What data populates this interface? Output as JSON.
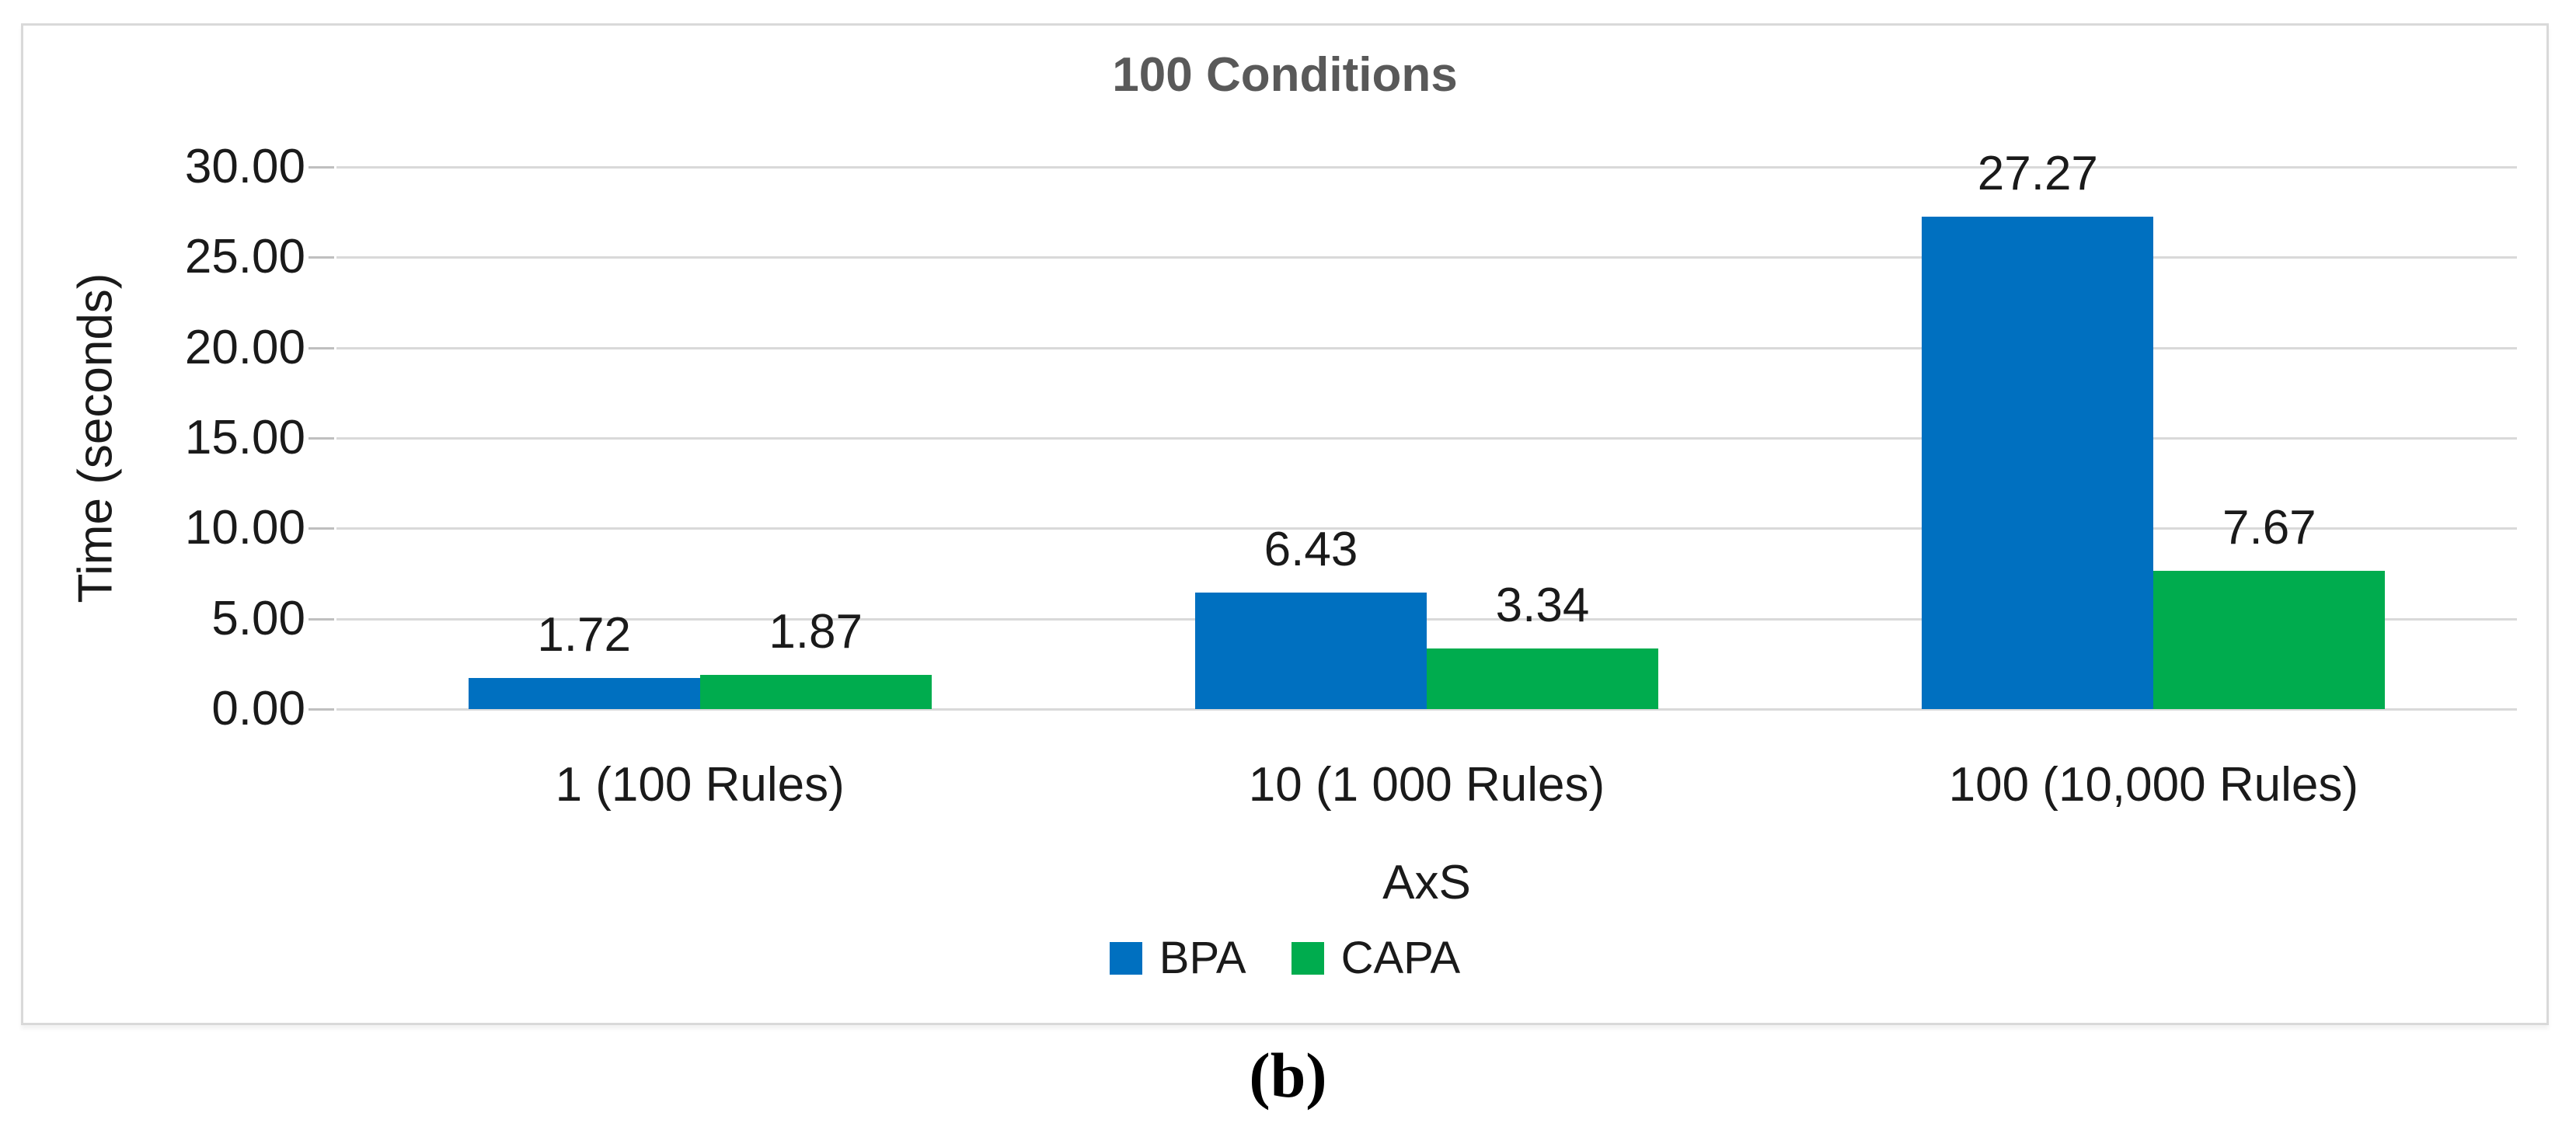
{
  "figure": {
    "caption": "(b)"
  },
  "chart_data": {
    "type": "bar",
    "title": "100 Conditions",
    "xlabel": "AxS",
    "ylabel": "Time (seconds)",
    "categories": [
      "1 (100 Rules)",
      "10 (1 000 Rules)",
      "100 (10,000 Rules)"
    ],
    "series": [
      {
        "name": "BPA",
        "color": "#0070C0",
        "values": [
          1.72,
          6.43,
          27.27
        ],
        "labels": [
          "1.72",
          "6.43",
          "27.27"
        ]
      },
      {
        "name": "CAPA",
        "color": "#00AC4E",
        "values": [
          1.87,
          3.34,
          7.67
        ],
        "labels": [
          "1.87",
          "3.34",
          "7.67"
        ]
      }
    ],
    "ylim": [
      0,
      30
    ],
    "ytick_step": 5,
    "ytick_labels": [
      "0.00",
      "5.00",
      "10.00",
      "15.00",
      "20.00",
      "25.00",
      "30.00"
    ],
    "grid": true,
    "legend_position": "bottom",
    "colors": {
      "title": "#595959",
      "gridline": "#D9D9D9",
      "tick": "#BFBFBF",
      "frame_border": "#D9D9D9",
      "text": "#1a1a1a"
    }
  }
}
